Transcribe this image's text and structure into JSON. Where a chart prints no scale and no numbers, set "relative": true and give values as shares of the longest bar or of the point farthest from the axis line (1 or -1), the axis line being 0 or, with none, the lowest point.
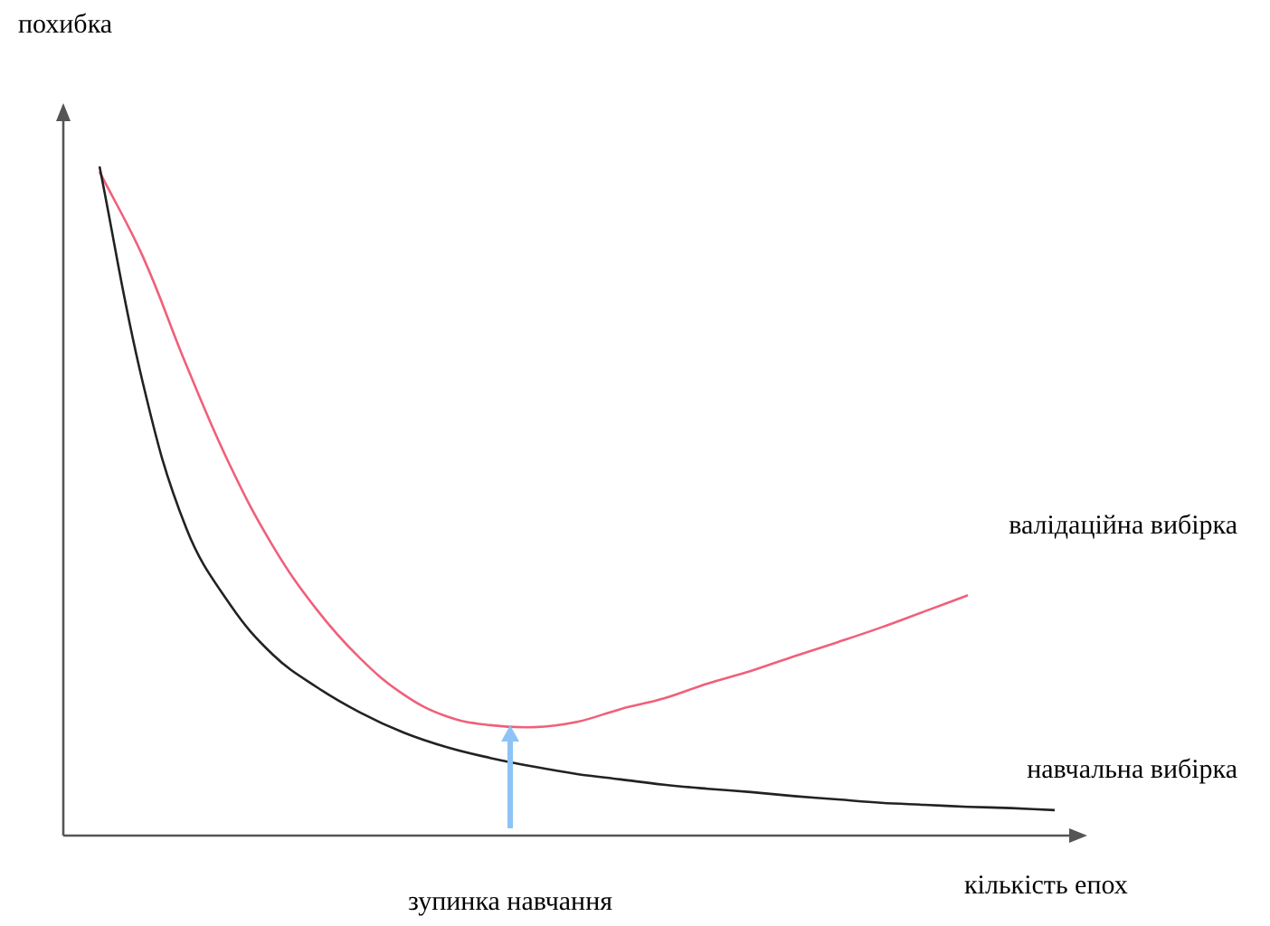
{
  "chart_data": {
    "type": "line",
    "relative": true,
    "xlabel": "кількість епох",
    "ylabel": "похибка",
    "legend": false,
    "marker": "none",
    "annotations": [
      "зупинка навчання"
    ],
    "categories": [
      null,
      null,
      null,
      null,
      null,
      null,
      null,
      null,
      null,
      null,
      null,
      null,
      null,
      null,
      null,
      null,
      null,
      null,
      null,
      null,
      null,
      null,
      null
    ],
    "series": [
      {
        "name": "навчальна вибірка",
        "color": "#222222",
        "values": [
          1,
          0.676,
          0.459,
          0.346,
          0.27,
          0.222,
          0.184,
          0.154,
          0.132,
          0.116,
          0.103,
          0.092,
          0.084,
          0.076,
          0.07,
          0.065,
          0.059,
          0.054,
          0.049,
          0.046,
          0.043,
          0.041,
          0.038
        ]
      },
      {
        "name": "валідаційна вибірка",
        "color": "#f0607a",
        "values": [
          0.992,
          0.865,
          0.703,
          0.554,
          0.432,
          0.338,
          0.265,
          0.211,
          0.178,
          0.165,
          0.162,
          0.17,
          0.189,
          0.205,
          0.227,
          0.246,
          0.268,
          0.289,
          0.311,
          0.335,
          0.359,
          null,
          null
        ]
      }
    ]
  }
}
